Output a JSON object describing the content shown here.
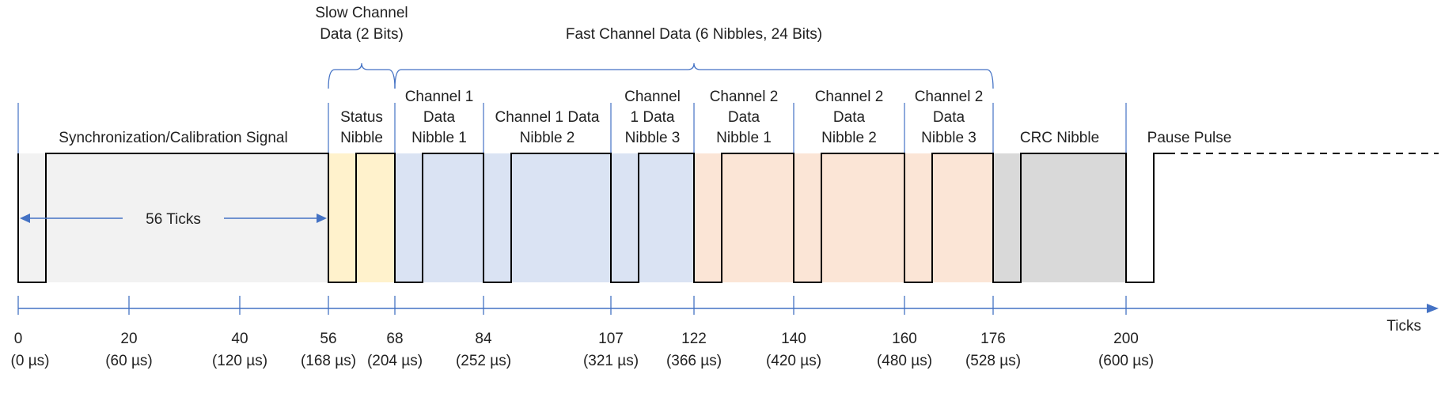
{
  "colors": {
    "sync": "#f2f2f2",
    "status": "#fff2cc",
    "channel1": "#dae3f3",
    "channel2": "#fbe5d6",
    "crc": "#d9d9d9",
    "axis": "#4472c4",
    "signal": "#000000"
  },
  "braces": {
    "slow": {
      "line1": "Slow Channel",
      "line2": "Data (2 Bits)",
      "from_tick": 56,
      "to_tick": 68
    },
    "fast": {
      "line1": "Fast Channel Data (6 Nibbles, 24 Bits)",
      "from_tick": 68,
      "to_tick": 176
    }
  },
  "segments": [
    {
      "id": "sync",
      "lines": [
        "Synchronization/Calibration Signal"
      ],
      "from_tick": 0,
      "to_tick": 56,
      "fill": "sync"
    },
    {
      "id": "status",
      "lines": [
        "Status",
        "Nibble"
      ],
      "from_tick": 56,
      "to_tick": 68,
      "fill": "status"
    },
    {
      "id": "ch1n1",
      "lines": [
        "Channel 1",
        "Data",
        "Nibble 1"
      ],
      "from_tick": 68,
      "to_tick": 84,
      "fill": "channel1"
    },
    {
      "id": "ch1n2",
      "lines": [
        "Channel 1 Data",
        "Nibble 2"
      ],
      "from_tick": 84,
      "to_tick": 107,
      "fill": "channel1"
    },
    {
      "id": "ch1n3",
      "lines": [
        "Channel",
        "1 Data",
        "Nibble 3"
      ],
      "from_tick": 107,
      "to_tick": 122,
      "fill": "channel1"
    },
    {
      "id": "ch2n1",
      "lines": [
        "Channel 2",
        "Data",
        "Nibble 1"
      ],
      "from_tick": 122,
      "to_tick": 140,
      "fill": "channel2"
    },
    {
      "id": "ch2n2",
      "lines": [
        "Channel 2",
        "Data",
        "Nibble 2"
      ],
      "from_tick": 140,
      "to_tick": 160,
      "fill": "channel2"
    },
    {
      "id": "ch2n3",
      "lines": [
        "Channel 2",
        "Data",
        "Nibble 3"
      ],
      "from_tick": 160,
      "to_tick": 176,
      "fill": "channel2"
    },
    {
      "id": "crc",
      "lines": [
        "CRC Nibble"
      ],
      "from_tick": 176,
      "to_tick": 200,
      "fill": "crc"
    },
    {
      "id": "pause",
      "lines": [
        "Pause Pulse"
      ],
      "from_tick": 200,
      "to_tick": null,
      "fill": null
    }
  ],
  "low_pulse_ticks": 5,
  "sync_width_label": "56 Ticks",
  "axis": {
    "label": "Ticks",
    "ticks": [
      {
        "value": 0,
        "time": "(0 µs)"
      },
      {
        "value": 20,
        "time": "(60 µs)"
      },
      {
        "value": 40,
        "time": "(120 µs)"
      },
      {
        "value": 56,
        "time": "(168 µs)"
      },
      {
        "value": 68,
        "time": "(204 µs)"
      },
      {
        "value": 84,
        "time": "(252 µs)"
      },
      {
        "value": 107,
        "time": "(321 µs)"
      },
      {
        "value": 122,
        "time": "(366 µs)"
      },
      {
        "value": 140,
        "time": "(420 µs)"
      },
      {
        "value": 160,
        "time": "(480 µs)"
      },
      {
        "value": 176,
        "time": "(528 µs)"
      },
      {
        "value": 200,
        "time": "(600 µs)"
      }
    ]
  }
}
